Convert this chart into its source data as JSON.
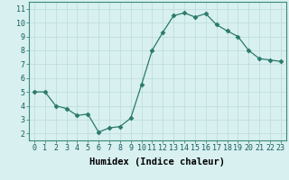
{
  "x": [
    0,
    1,
    2,
    3,
    4,
    5,
    6,
    7,
    8,
    9,
    10,
    11,
    12,
    13,
    14,
    15,
    16,
    17,
    18,
    19,
    20,
    21,
    22,
    23
  ],
  "y": [
    5.0,
    5.0,
    4.0,
    3.8,
    3.3,
    3.4,
    2.1,
    2.4,
    2.5,
    3.1,
    5.5,
    8.0,
    9.3,
    10.5,
    10.7,
    10.4,
    10.65,
    9.85,
    9.4,
    9.0,
    8.0,
    7.4,
    7.3,
    7.2
  ],
  "line_color": "#2a7a6a",
  "marker": "D",
  "marker_size": 2.5,
  "bg_color": "#d8f0f0",
  "grid_color": "#c0dede",
  "xlabel": "Humidex (Indice chaleur)",
  "xlim": [
    -0.5,
    23.5
  ],
  "ylim": [
    1.5,
    11.5
  ],
  "yticks": [
    2,
    3,
    4,
    5,
    6,
    7,
    8,
    9,
    10,
    11
  ],
  "xticks": [
    0,
    1,
    2,
    3,
    4,
    5,
    6,
    7,
    8,
    9,
    10,
    11,
    12,
    13,
    14,
    15,
    16,
    17,
    18,
    19,
    20,
    21,
    22,
    23
  ],
  "tick_fontsize": 6.0,
  "xlabel_fontsize": 7.5
}
